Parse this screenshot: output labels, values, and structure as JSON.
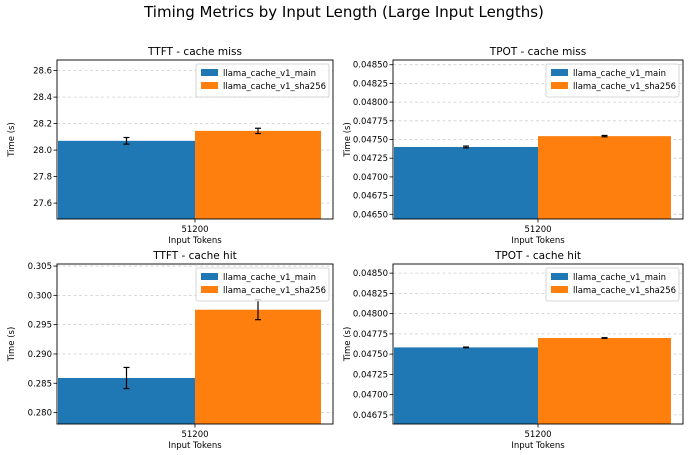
{
  "figure": {
    "suptitle": "Timing Metrics by Input Length (Large Input Lengths)"
  },
  "colors": {
    "series_1": "#1f77b4",
    "series_1_edge": "#1f77b4",
    "series_2": "#ff7f0e",
    "series_2_edge": "#ff7f0e",
    "grid": "#b0b0b0"
  },
  "chart_data": [
    {
      "type": "bar",
      "title": "TTFT - cache miss",
      "xlabel": "Input Tokens",
      "ylabel": "Time (s)",
      "categories": [
        "51200"
      ],
      "ylim": [
        27.48,
        28.68
      ],
      "yticks": [
        27.6,
        27.8,
        28.0,
        28.2,
        28.4,
        28.6
      ],
      "ytick_labels": [
        "27.6",
        "27.8",
        "28.0",
        "28.2",
        "28.4",
        "28.6"
      ],
      "grid": "y, dashed",
      "legend": "top-right",
      "series": [
        {
          "name": "llama_cache_v1_main",
          "values": [
            28.07
          ],
          "error": [
            0.025
          ]
        },
        {
          "name": "llama_cache_v1_sha256",
          "values": [
            28.145
          ],
          "error": [
            0.02
          ]
        }
      ]
    },
    {
      "type": "bar",
      "title": "TPOT - cache miss",
      "xlabel": "Input Tokens",
      "ylabel": "Time (s)",
      "categories": [
        "51200"
      ],
      "ylim": [
        0.046437,
        0.048563
      ],
      "yticks": [
        0.0465,
        0.04675,
        0.047,
        0.04725,
        0.0475,
        0.04775,
        0.048,
        0.04825,
        0.0485
      ],
      "ytick_labels": [
        "0.04650",
        "0.04675",
        "0.04700",
        "0.04725",
        "0.04750",
        "0.04775",
        "0.04800",
        "0.04825",
        "0.04850"
      ],
      "grid": "y, dashed",
      "legend": "top-right",
      "series": [
        {
          "name": "llama_cache_v1_main",
          "values": [
            0.0474
          ],
          "error": [
            1.2e-05
          ]
        },
        {
          "name": "llama_cache_v1_sha256",
          "values": [
            0.047545
          ],
          "error": [
            9e-06
          ]
        }
      ]
    },
    {
      "type": "bar",
      "title": "TTFT - cache hit",
      "xlabel": "Input Tokens",
      "ylabel": "Time (s)",
      "categories": [
        "51200"
      ],
      "ylim": [
        0.27805,
        0.30535
      ],
      "yticks": [
        0.28,
        0.285,
        0.29,
        0.295,
        0.3,
        0.305
      ],
      "ytick_labels": [
        "0.280",
        "0.285",
        "0.290",
        "0.295",
        "0.300",
        "0.305"
      ],
      "grid": "y, dashed",
      "legend": "top-right",
      "series": [
        {
          "name": "llama_cache_v1_main",
          "values": [
            0.2859
          ],
          "error": [
            0.0018
          ]
        },
        {
          "name": "llama_cache_v1_sha256",
          "values": [
            0.29755
          ],
          "error": [
            0.0017
          ]
        }
      ]
    },
    {
      "type": "bar",
      "title": "TPOT - cache hit",
      "xlabel": "Input Tokens",
      "ylabel": "Time (s)",
      "categories": [
        "51200"
      ],
      "ylim": [
        0.046637,
        0.048613
      ],
      "yticks": [
        0.04675,
        0.047,
        0.04725,
        0.0475,
        0.04775,
        0.048,
        0.04825,
        0.0485
      ],
      "ytick_labels": [
        "0.04675",
        "0.04700",
        "0.04725",
        "0.04750",
        "0.04775",
        "0.04800",
        "0.04825",
        "0.04850"
      ],
      "grid": "y, dashed",
      "legend": "top-right",
      "series": [
        {
          "name": "llama_cache_v1_main",
          "values": [
            0.047583
          ],
          "error": [
            4e-06
          ]
        },
        {
          "name": "llama_cache_v1_sha256",
          "values": [
            0.047699
          ],
          "error": [
            4e-06
          ]
        }
      ]
    }
  ]
}
